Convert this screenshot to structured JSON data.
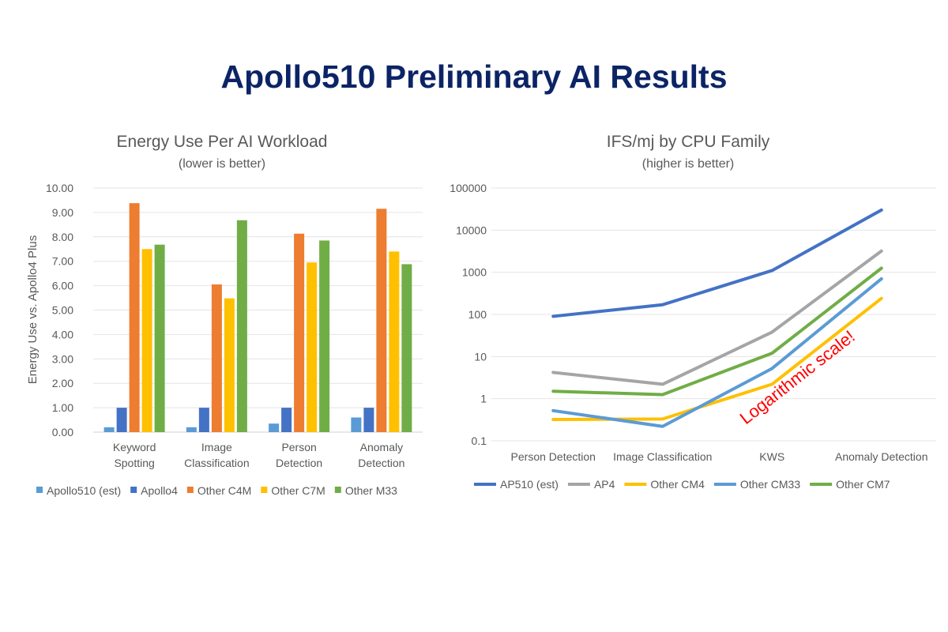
{
  "page_title": "Apollo510 Preliminary AI Results",
  "chart_data": [
    {
      "type": "bar",
      "title": "Energy Use Per AI Workload",
      "subtitle": "(lower is better)",
      "xlabel": "",
      "ylabel": "Energy Use vs. Apollo4 Plus",
      "ylim": [
        0,
        10
      ],
      "yticks": [
        "0.00",
        "1.00",
        "2.00",
        "3.00",
        "4.00",
        "5.00",
        "6.00",
        "7.00",
        "8.00",
        "9.00",
        "10.00"
      ],
      "categories": [
        [
          "Keyword",
          "Spotting"
        ],
        [
          "Image",
          "Classification"
        ],
        [
          "Person",
          "Detection"
        ],
        [
          "Anomaly",
          "Detection"
        ]
      ],
      "legend_position": "bottom",
      "grid": true,
      "series": [
        {
          "name": "Apollo510 (est)",
          "color": "#5b9bd5",
          "values": [
            0.2,
            0.2,
            0.35,
            0.6
          ]
        },
        {
          "name": "Apollo4",
          "color": "#4472c4",
          "values": [
            1.0,
            1.0,
            1.0,
            1.0
          ]
        },
        {
          "name": "Other C4M",
          "color": "#ed7d31",
          "values": [
            9.38,
            6.05,
            8.13,
            9.15
          ]
        },
        {
          "name": "Other C7M",
          "color": "#ffc000",
          "values": [
            7.5,
            5.48,
            6.95,
            7.4
          ]
        },
        {
          "name": "Other M33",
          "color": "#70ad47",
          "values": [
            7.68,
            8.68,
            7.85,
            6.88
          ]
        }
      ]
    },
    {
      "type": "line",
      "title": "IFS/mj by CPU Family",
      "subtitle": "(higher is better)",
      "xlabel": "",
      "ylabel": "",
      "yscale": "log",
      "ylim": [
        0.1,
        100000
      ],
      "yticks": [
        "0.1",
        "1",
        "10",
        "100",
        "1000",
        "10000",
        "100000"
      ],
      "categories": [
        "Person Detection",
        "Image Classification",
        "KWS",
        "Anomaly Detection"
      ],
      "legend_position": "bottom",
      "grid": true,
      "annotation": "Logarithmic scale!",
      "annotation_color": "#ff0000",
      "series": [
        {
          "name": "AP510 (est)",
          "color": "#4472c4",
          "values": [
            90,
            170,
            1100,
            30000
          ]
        },
        {
          "name": "AP4",
          "color": "#a5a5a5",
          "values": [
            4.2,
            2.2,
            38,
            3200
          ]
        },
        {
          "name": "Other CM4",
          "color": "#ffc000",
          "values": [
            0.32,
            0.33,
            2.2,
            240
          ]
        },
        {
          "name": "Other CM33",
          "color": "#5b9bd5",
          "values": [
            0.52,
            0.22,
            5.2,
            700
          ]
        },
        {
          "name": "Other CM7",
          "color": "#70ad47",
          "values": [
            1.5,
            1.25,
            12,
            1250
          ]
        }
      ]
    }
  ]
}
